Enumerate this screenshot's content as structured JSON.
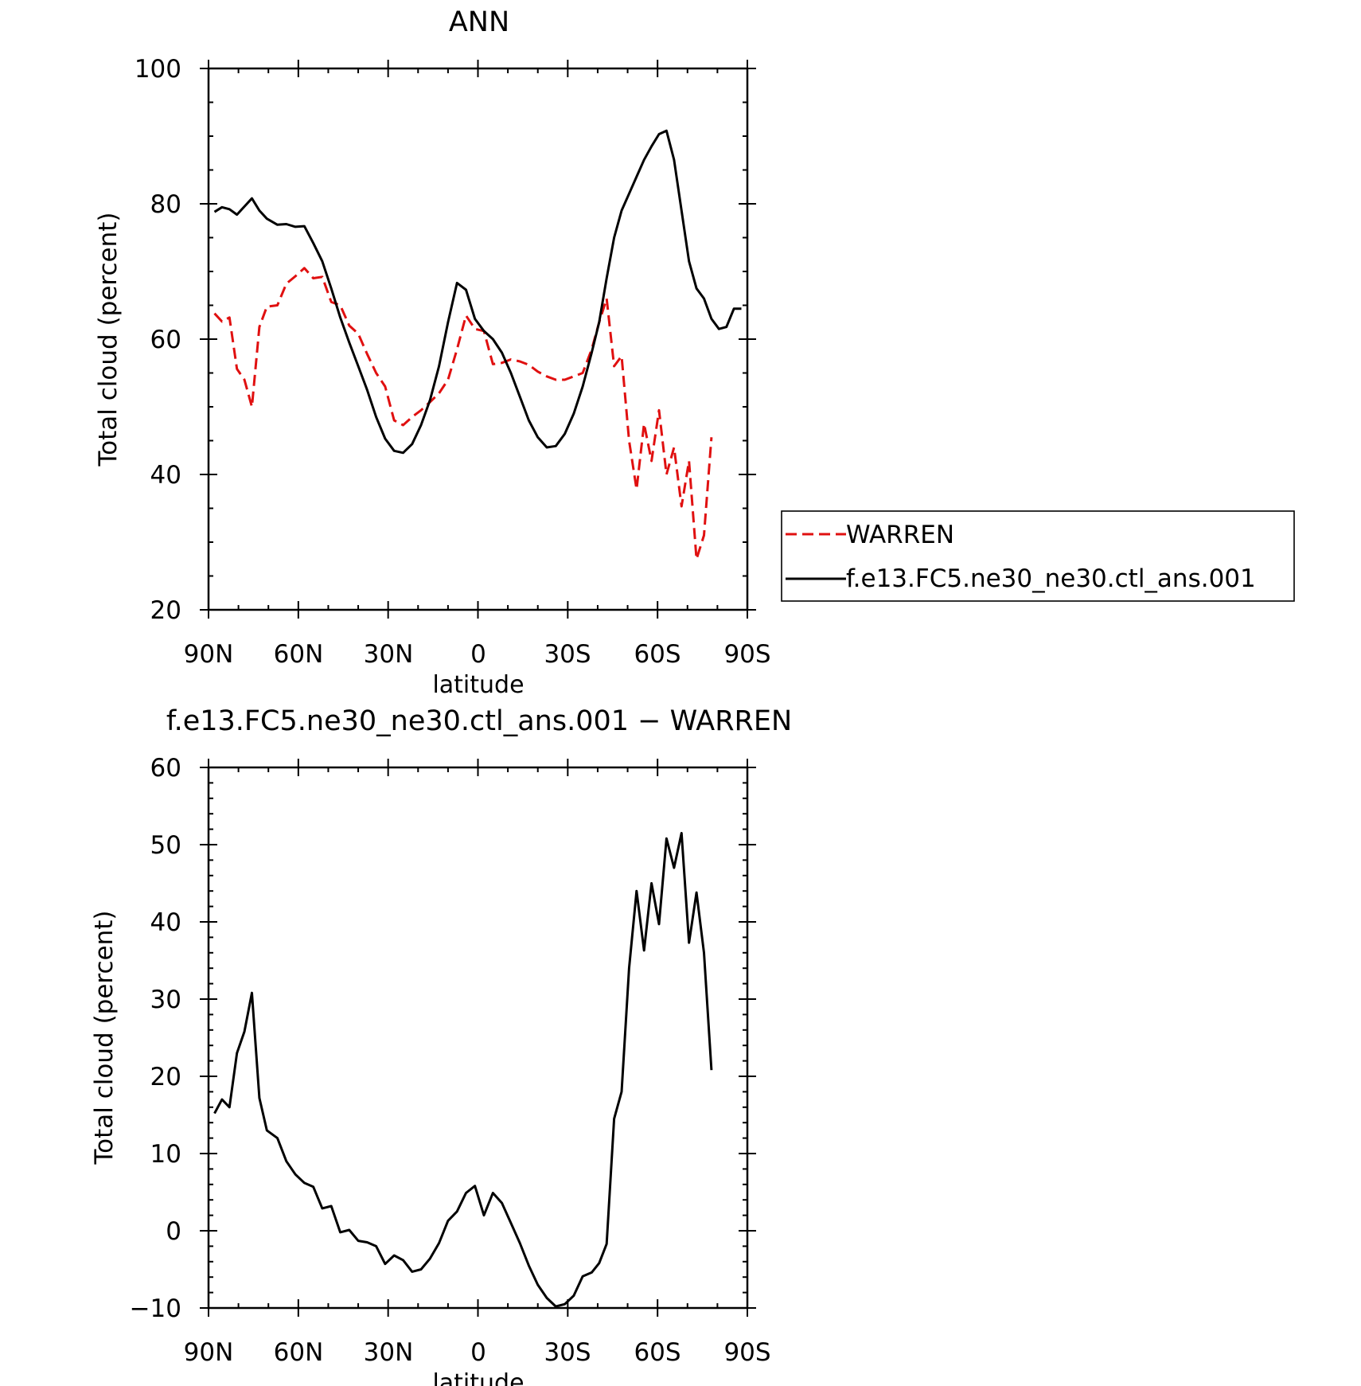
{
  "chart_data": [
    {
      "type": "line",
      "title": "ANN",
      "xlabel": "latitude",
      "ylabel": "Total cloud (percent)",
      "xlim": [
        90,
        -90
      ],
      "ylim": [
        20,
        100
      ],
      "xticks": [
        90,
        60,
        30,
        0,
        -30,
        -60,
        -90
      ],
      "xtick_labels": [
        "90N",
        "60N",
        "30N",
        "0",
        "30S",
        "60S",
        "90S"
      ],
      "yticks": [
        20,
        40,
        60,
        80,
        100
      ],
      "ytick_labels": [
        "20",
        "40",
        "60",
        "80",
        "100"
      ],
      "legend": {
        "placement": "right",
        "entries": [
          "WARREN",
          "f.e13.FC5.ne30_ne30.ctl_ans.001"
        ]
      },
      "series": [
        {
          "name": "WARREN",
          "color": "#e01010",
          "style": "dashed",
          "x": [
            88,
            85.5,
            83,
            80.5,
            78,
            75.5,
            73,
            70.5,
            67,
            64,
            61,
            58,
            55,
            52,
            49,
            46,
            43,
            40,
            37,
            34,
            31,
            28,
            25,
            22,
            19,
            16,
            13,
            10,
            7,
            4,
            1,
            -2,
            -5,
            -8,
            -11,
            -14,
            -17,
            -20,
            -23,
            -26,
            -29,
            -32,
            -35,
            -38,
            -40.5,
            -43,
            -45.5,
            -48,
            -50.5,
            -53,
            -55.5,
            -58,
            -60.5,
            -63,
            -65.5,
            -68,
            -70.5,
            -73,
            -75.5,
            -78
          ],
          "values": [
            63.8,
            62.6,
            63.2,
            55.6,
            54.0,
            50.0,
            61.8,
            64.8,
            65.0,
            68.2,
            69.3,
            70.5,
            69.0,
            69.2,
            65.5,
            65.0,
            62.0,
            60.8,
            57.8,
            55.0,
            53.0,
            48.0,
            47.3,
            48.5,
            49.5,
            50.7,
            52.0,
            54.0,
            58.5,
            63.5,
            61.5,
            61.2,
            56.3,
            56.5,
            57.0,
            56.7,
            56.2,
            55.2,
            54.5,
            54.0,
            54.0,
            54.5,
            55.0,
            58.5,
            62.5,
            66.0,
            56.0,
            57.5,
            45.0,
            37.8,
            47.5,
            42.0,
            49.5,
            40.0,
            44.0,
            35.3,
            42.0,
            27.5,
            31.0,
            45.5
          ]
        },
        {
          "name": "f.e13.FC5.ne30_ne30.ctl_ans.001",
          "color": "#000000",
          "style": "solid",
          "x": [
            88,
            85.5,
            83,
            80.5,
            78,
            75.5,
            73,
            70.5,
            67,
            64,
            61,
            58,
            55,
            52,
            49,
            46,
            43,
            40,
            37,
            34,
            31,
            28,
            25,
            22,
            19,
            16,
            13,
            10,
            7,
            4,
            1,
            -2,
            -5,
            -8,
            -11,
            -14,
            -17,
            -20,
            -23,
            -26,
            -29,
            -32,
            -35,
            -38,
            -40.5,
            -43,
            -45.5,
            -48,
            -50.5,
            -53,
            -55.5,
            -58,
            -60.5,
            -63,
            -65.5,
            -68,
            -70.5,
            -73,
            -75.5,
            -78,
            -80.5,
            -83,
            -85.5,
            -88
          ],
          "values": [
            78.8,
            79.5,
            79.2,
            78.4,
            79.6,
            80.8,
            79.0,
            77.8,
            76.9,
            77.0,
            76.6,
            76.7,
            74.2,
            71.5,
            67.5,
            63.2,
            59.5,
            56.0,
            52.5,
            48.5,
            45.3,
            43.5,
            43.2,
            44.5,
            47.3,
            51.0,
            56.0,
            62.5,
            68.3,
            67.3,
            63.0,
            61.2,
            60.0,
            58.0,
            55.0,
            51.5,
            48.0,
            45.5,
            44.0,
            44.2,
            46.0,
            49.0,
            53.0,
            58.0,
            62.5,
            69.0,
            75.0,
            79.0,
            81.5,
            84.0,
            86.5,
            88.5,
            90.3,
            90.8,
            86.5,
            79.0,
            71.5,
            67.5,
            66.0,
            63.0,
            61.5,
            61.8,
            64.5,
            64.5
          ]
        }
      ]
    },
    {
      "type": "line",
      "title": "f.e13.FC5.ne30_ne30.ctl_ans.001 − WARREN",
      "xlabel": "latitude",
      "ylabel": "Total cloud (percent)",
      "xlim": [
        90,
        -90
      ],
      "ylim": [
        -10,
        60
      ],
      "xticks": [
        90,
        60,
        30,
        0,
        -30,
        -60,
        -90
      ],
      "xtick_labels": [
        "90N",
        "60N",
        "30N",
        "0",
        "30S",
        "60S",
        "90S"
      ],
      "yticks": [
        -10,
        0,
        10,
        20,
        30,
        40,
        50,
        60
      ],
      "ytick_labels": [
        "−10",
        "0",
        "10",
        "20",
        "30",
        "40",
        "50",
        "60"
      ],
      "series": [
        {
          "name": "f.e13.FC5.ne30_ne30.ctl_ans.001 − WARREN",
          "color": "#000000",
          "style": "solid",
          "x": [
            88,
            85.5,
            83,
            80.5,
            78,
            75.5,
            73,
            70.5,
            67,
            64,
            61,
            58,
            55,
            52,
            49,
            46,
            43,
            40,
            37,
            34,
            31,
            28,
            25,
            22,
            19,
            16,
            13,
            10,
            7,
            4,
            1,
            -2,
            -5,
            -8,
            -11,
            -14,
            -17,
            -20,
            -23,
            -26,
            -29,
            -32,
            -35,
            -38,
            -40.5,
            -43,
            -45.5,
            -48,
            -50.5,
            -53,
            -55.5,
            -58,
            -60.5,
            -63,
            -65.5,
            -68,
            -70.5,
            -73,
            -75.5,
            -78
          ],
          "values": [
            15.2,
            17.0,
            16.0,
            23.0,
            25.8,
            30.8,
            17.2,
            13.0,
            12.0,
            9.0,
            7.3,
            6.2,
            5.7,
            2.9,
            3.2,
            -0.2,
            0.1,
            -1.3,
            -1.5,
            -2.0,
            -4.3,
            -3.2,
            -3.8,
            -5.3,
            -5.0,
            -3.6,
            -1.6,
            1.3,
            2.5,
            4.9,
            5.8,
            2.0,
            4.9,
            3.6,
            1.0,
            -1.6,
            -4.5,
            -7.0,
            -8.7,
            -9.8,
            -9.5,
            -8.4,
            -5.9,
            -5.4,
            -4.2,
            -1.7,
            14.5,
            18.0,
            34.0,
            44.0,
            36.3,
            45.0,
            39.7,
            50.8,
            47.0,
            51.5,
            37.3,
            43.8,
            36.0,
            20.8
          ]
        }
      ]
    }
  ]
}
